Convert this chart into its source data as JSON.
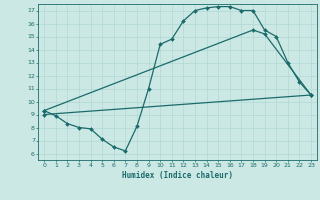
{
  "bg_color": "#cce8e4",
  "line_color": "#1a6b6b",
  "grid_color": "#b0d8d4",
  "xlabel": "Humidex (Indice chaleur)",
  "ylim": [
    5.5,
    17.5
  ],
  "xlim": [
    -0.5,
    23.5
  ],
  "yticks": [
    6,
    7,
    8,
    9,
    10,
    11,
    12,
    13,
    14,
    15,
    16,
    17
  ],
  "xticks": [
    0,
    1,
    2,
    3,
    4,
    5,
    6,
    7,
    8,
    9,
    10,
    11,
    12,
    13,
    14,
    15,
    16,
    17,
    18,
    19,
    20,
    21,
    22,
    23
  ],
  "curve1_x": [
    0,
    1,
    2,
    3,
    4,
    5,
    6,
    7,
    8,
    9,
    10,
    11,
    12,
    13,
    14,
    15,
    16,
    17,
    18,
    19,
    20,
    21,
    22,
    23
  ],
  "curve1_y": [
    9.3,
    8.9,
    8.3,
    8.0,
    7.9,
    7.1,
    6.5,
    6.2,
    8.1,
    11.0,
    14.4,
    14.8,
    16.2,
    17.0,
    17.2,
    17.3,
    17.3,
    17.0,
    17.0,
    15.5,
    15.0,
    13.0,
    11.5,
    10.5
  ],
  "curve2_x": [
    0,
    18,
    19,
    23
  ],
  "curve2_y": [
    9.3,
    15.5,
    15.2,
    10.5
  ],
  "curve3_x": [
    0,
    23
  ],
  "curve3_y": [
    9.0,
    10.5
  ],
  "marker": "D",
  "marker_size": 2.0,
  "linewidth": 0.9
}
